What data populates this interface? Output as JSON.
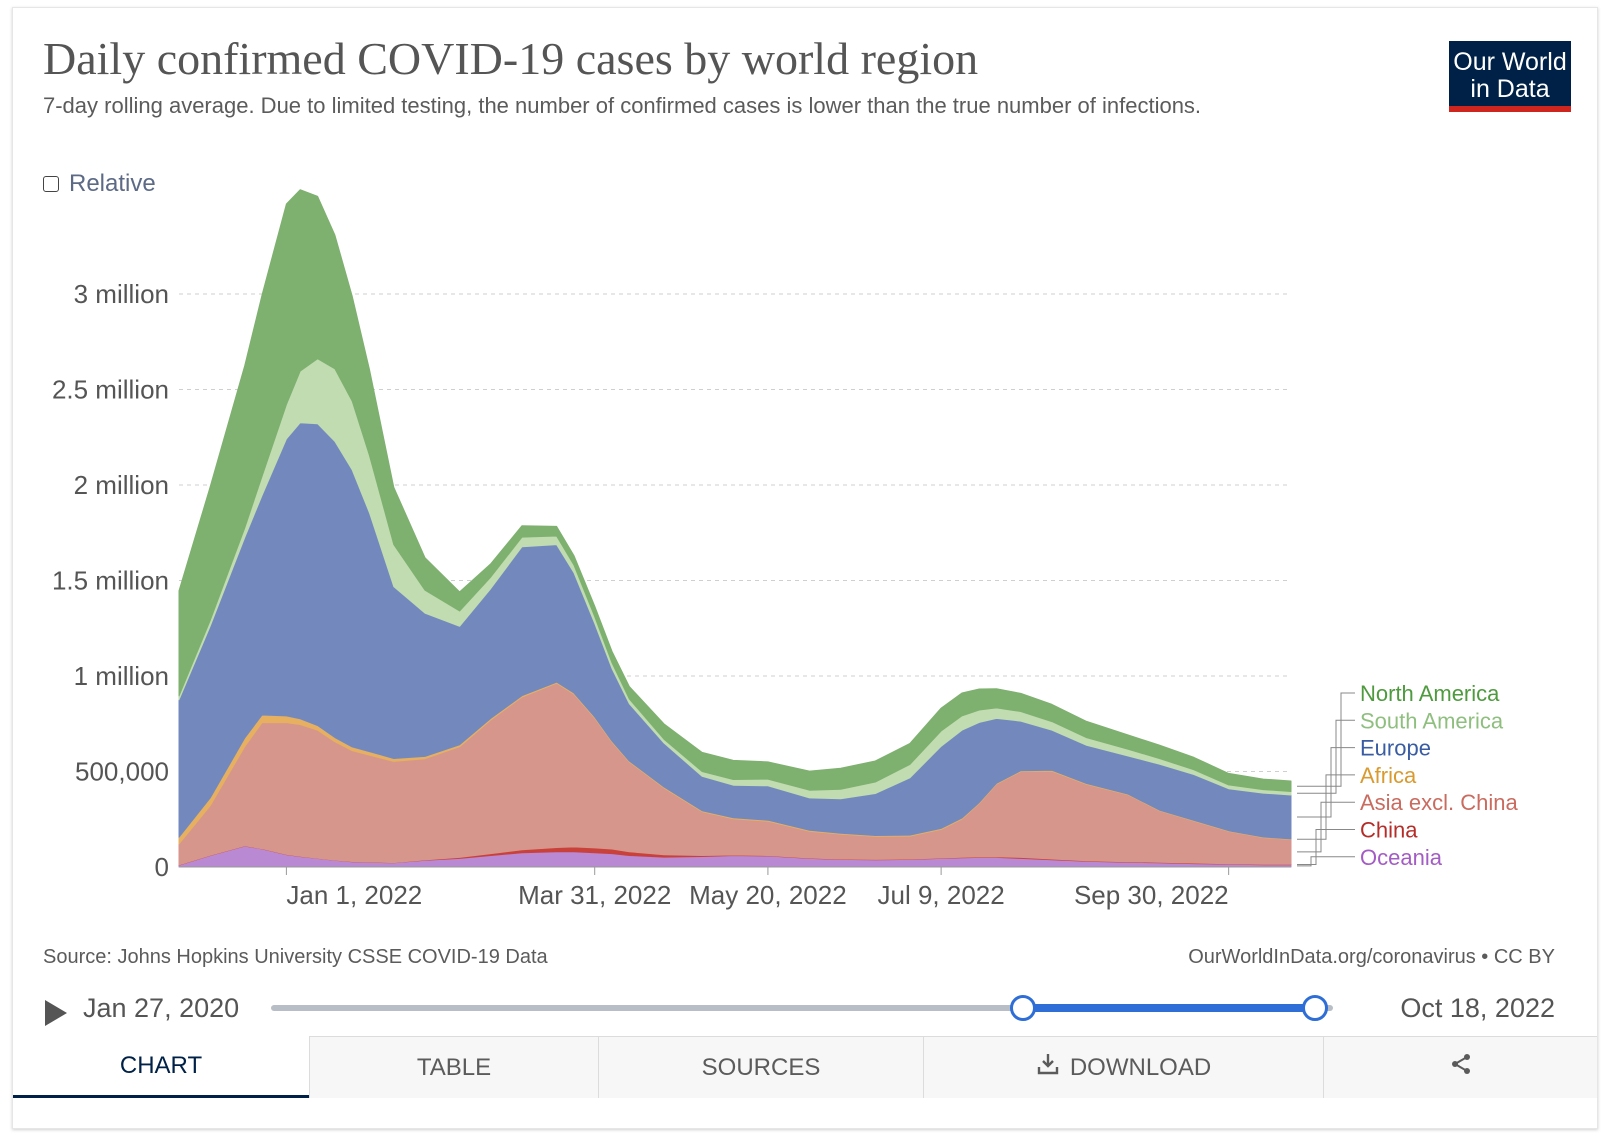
{
  "header": {
    "title": "Daily confirmed COVID-19 cases by world region",
    "subtitle": "7-day rolling average. Due to limited testing, the number of confirmed cases is lower than the true number of infections.",
    "logo_line1": "Our World",
    "logo_line2": "in Data"
  },
  "controls": {
    "relative_label": "Relative",
    "relative_checked": false
  },
  "footer": {
    "source": "Source: Johns Hopkins University CSSE COVID-19 Data",
    "credit": "OurWorldInData.org/coronavirus • CC BY"
  },
  "timeline": {
    "start_label": "Jan 27, 2020",
    "end_label": "Oct 18, 2022",
    "play_icon": "play-icon"
  },
  "tabs": [
    {
      "label": "CHART",
      "icon": "",
      "active": true
    },
    {
      "label": "TABLE",
      "icon": "",
      "active": false
    },
    {
      "label": "SOURCES",
      "icon": "",
      "active": false
    },
    {
      "label": "DOWNLOAD",
      "icon": "download-icon",
      "active": false
    },
    {
      "label": "",
      "icon": "share-icon",
      "active": false
    }
  ],
  "colors": {
    "North America": "#7eb06f",
    "South America": "#c0dcb0",
    "Europe": "#7389be",
    "Africa": "#e6b060",
    "Asia excl. China": "#d6968c",
    "China": "#c9413b",
    "Oceania": "#b989d3",
    "accent": "#2e6ed6",
    "brand": "#002147"
  },
  "chart_data": {
    "type": "area",
    "stacked": true,
    "title": "Daily confirmed COVID-19 cases by world region",
    "xlabel": "",
    "ylabel": "",
    "x": [
      "2021-12-01",
      "2021-12-10",
      "2021-12-20",
      "2021-12-25",
      "2022-01-01",
      "2022-01-05",
      "2022-01-10",
      "2022-01-15",
      "2022-01-20",
      "2022-01-25",
      "2022-02-01",
      "2022-02-10",
      "2022-02-20",
      "2022-03-01",
      "2022-03-10",
      "2022-03-20",
      "2022-03-25",
      "2022-03-31",
      "2022-04-05",
      "2022-04-10",
      "2022-04-20",
      "2022-05-01",
      "2022-05-10",
      "2022-05-20",
      "2022-06-01",
      "2022-06-10",
      "2022-06-20",
      "2022-06-30",
      "2022-07-09",
      "2022-07-15",
      "2022-07-20",
      "2022-07-25",
      "2022-08-01",
      "2022-08-10",
      "2022-08-20",
      "2022-09-01",
      "2022-09-10",
      "2022-09-20",
      "2022-09-30",
      "2022-10-10",
      "2022-10-18"
    ],
    "x_ticks": [
      "Jan 1, 2022",
      "Mar 31, 2022",
      "May 20, 2022",
      "Jul 9, 2022",
      "Sep 30, 2022"
    ],
    "x_tick_dates": [
      "2022-01-01",
      "2022-03-31",
      "2022-05-20",
      "2022-07-09",
      "2022-09-30"
    ],
    "y_ticks": [
      0,
      500000,
      1000000,
      1500000,
      2000000,
      2500000,
      3000000
    ],
    "y_tick_labels": [
      "0",
      "500,000",
      "1 million",
      "1.5 million",
      "2 million",
      "2.5 million",
      "3 million"
    ],
    "ylim": [
      0,
      3450000
    ],
    "grid": true,
    "legend_position": "right",
    "series": [
      {
        "name": "Oceania",
        "values": [
          10000,
          60000,
          110000,
          95000,
          65000,
          55000,
          45000,
          35000,
          28000,
          25000,
          22000,
          35000,
          45000,
          60000,
          75000,
          80000,
          80000,
          75000,
          70000,
          60000,
          52000,
          55000,
          60000,
          58000,
          45000,
          40000,
          38000,
          40000,
          45000,
          48000,
          50000,
          50000,
          45000,
          38000,
          30000,
          25000,
          22000,
          18000,
          15000,
          12000,
          12000
        ]
      },
      {
        "name": "China",
        "values": [
          1000,
          1000,
          1000,
          1000,
          1000,
          1000,
          1000,
          1000,
          1000,
          1000,
          1000,
          2000,
          5000,
          10000,
          15000,
          22000,
          25000,
          25000,
          24000,
          20000,
          12000,
          5000,
          3000,
          2000,
          2000,
          2000,
          2000,
          2000,
          2000,
          3000,
          3000,
          4000,
          5000,
          4000,
          3000,
          3000,
          3000,
          3000,
          2000,
          2000,
          2000
        ]
      },
      {
        "name": "Asia excl. China",
        "values": [
          110000,
          260000,
          520000,
          660000,
          690000,
          690000,
          670000,
          620000,
          580000,
          560000,
          530000,
          530000,
          580000,
          700000,
          800000,
          860000,
          800000,
          680000,
          560000,
          470000,
          350000,
          230000,
          190000,
          180000,
          140000,
          130000,
          120000,
          120000,
          150000,
          200000,
          280000,
          380000,
          450000,
          460000,
          400000,
          350000,
          270000,
          220000,
          170000,
          140000,
          130000
        ]
      },
      {
        "name": "Africa",
        "values": [
          35000,
          40000,
          45000,
          40000,
          35000,
          30000,
          25000,
          22000,
          20000,
          18000,
          15000,
          12000,
          10000,
          8000,
          7000,
          6000,
          6000,
          6000,
          5000,
          5000,
          5000,
          5000,
          5000,
          5000,
          5000,
          5000,
          5000,
          5000,
          5000,
          5000,
          4000,
          4000,
          4000,
          4000,
          4000,
          3000,
          3000,
          3000,
          3000,
          3000,
          3000
        ]
      },
      {
        "name": "Europe",
        "values": [
          720000,
          900000,
          1050000,
          1150000,
          1450000,
          1550000,
          1580000,
          1550000,
          1450000,
          1250000,
          900000,
          750000,
          620000,
          680000,
          780000,
          720000,
          630000,
          490000,
          380000,
          300000,
          230000,
          180000,
          170000,
          180000,
          170000,
          180000,
          220000,
          300000,
          430000,
          460000,
          420000,
          340000,
          260000,
          210000,
          200000,
          200000,
          240000,
          240000,
          220000,
          230000,
          230000
        ]
      },
      {
        "name": "South America",
        "values": [
          20000,
          30000,
          50000,
          100000,
          180000,
          270000,
          340000,
          380000,
          360000,
          300000,
          220000,
          120000,
          80000,
          60000,
          50000,
          45000,
          40000,
          35000,
          30000,
          25000,
          20000,
          25000,
          30000,
          35000,
          40000,
          50000,
          60000,
          70000,
          80000,
          75000,
          65000,
          55000,
          50000,
          45000,
          40000,
          35000,
          30000,
          25000,
          20000,
          18000,
          18000
        ]
      },
      {
        "name": "North America",
        "values": [
          550000,
          700000,
          850000,
          950000,
          1050000,
          950000,
          850000,
          700000,
          550000,
          450000,
          300000,
          170000,
          100000,
          70000,
          60000,
          50000,
          50000,
          55000,
          60000,
          65000,
          80000,
          100000,
          100000,
          90000,
          100000,
          110000,
          110000,
          110000,
          120000,
          120000,
          110000,
          100000,
          95000,
          90000,
          85000,
          75000,
          70000,
          65000,
          60000,
          55000,
          55000
        ]
      }
    ],
    "legend_order": [
      "North America",
      "South America",
      "Europe",
      "Africa",
      "Asia excl. China",
      "China",
      "Oceania"
    ]
  }
}
